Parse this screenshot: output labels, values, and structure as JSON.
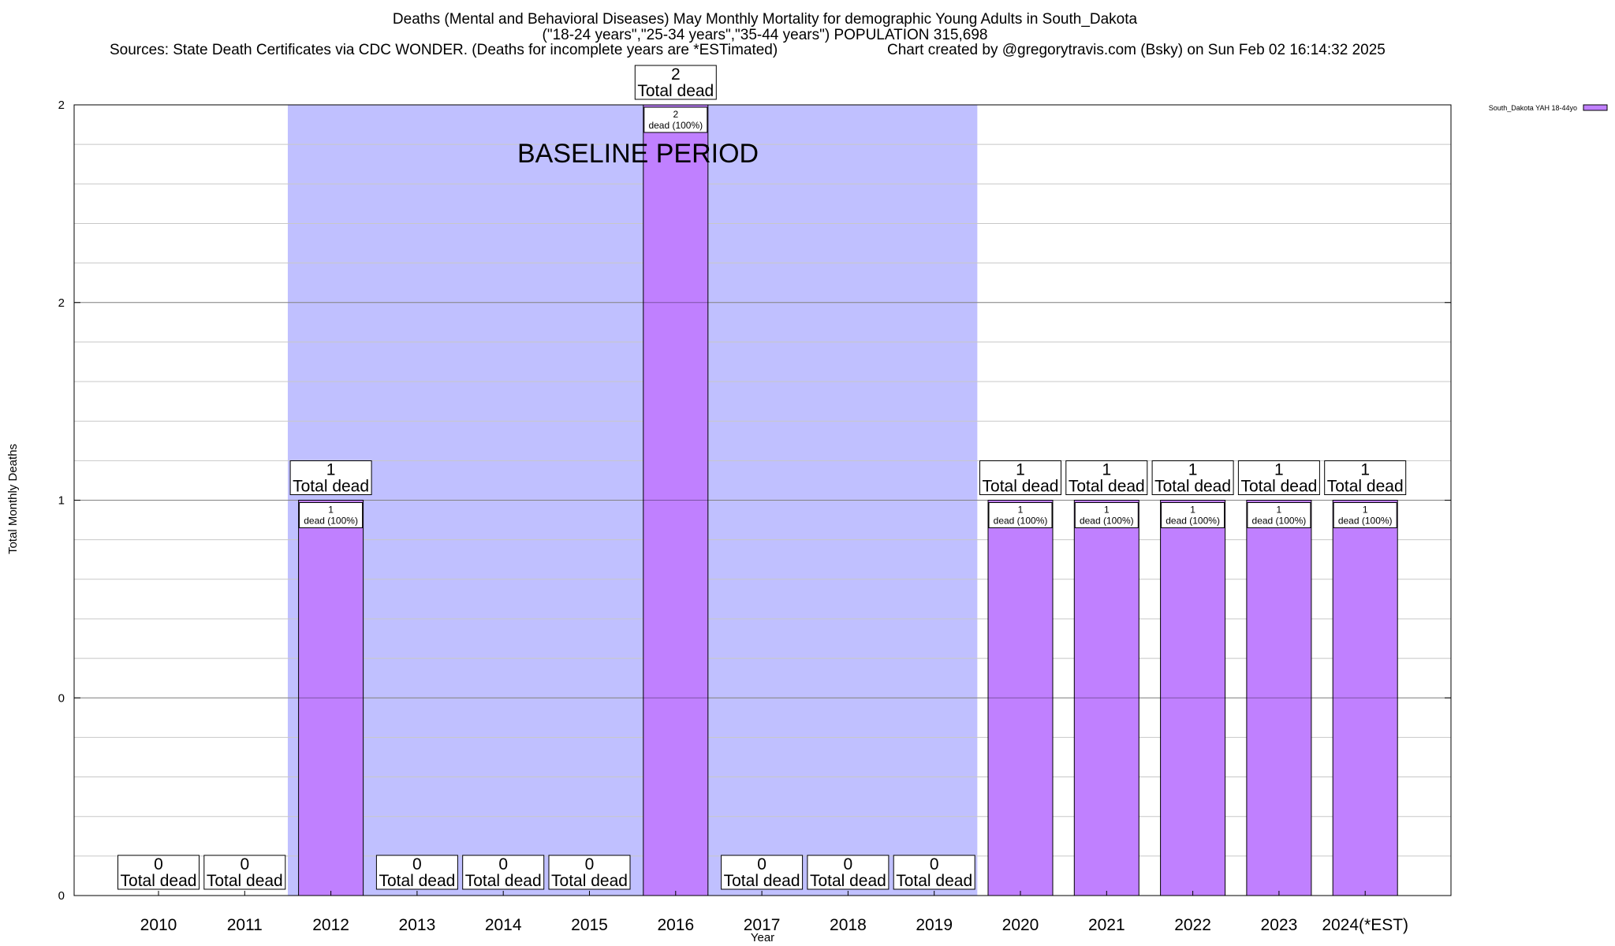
{
  "header": {
    "title": "Deaths (Mental and Behavioral Diseases) May Monthly Mortality for demographic Young Adults in South_Dakota",
    "subtitle": "(\"18-24 years\",\"25-34 years\",\"35-44 years\") POPULATION 315,698",
    "sources": "Sources: State Death Certificates via CDC WONDER. (Deaths for incomplete years are *ESTimated)",
    "credit": "Chart created by @gregorytravis.com (Bsky) on Sun Feb 02 16:14:32 2025"
  },
  "chart_data": {
    "type": "bar",
    "title": "Deaths (Mental and Behavioral Diseases) May Monthly Mortality for demographic Young Adults in South_Dakota",
    "xlabel": "Year",
    "ylabel": "Total Monthly Deaths",
    "categories": [
      "2010",
      "2011",
      "2012",
      "2013",
      "2014",
      "2015",
      "2016",
      "2017",
      "2018",
      "2019",
      "2020",
      "2021",
      "2022",
      "2023",
      "2024(*EST)"
    ],
    "series": [
      {
        "name": "South_Dakota YAH 18-44yo",
        "values": [
          0,
          0,
          1,
          0,
          0,
          0,
          2,
          0,
          0,
          0,
          1,
          1,
          1,
          1,
          1
        ],
        "color": "#c080ff"
      }
    ],
    "total_labels": [
      "0\nTotal dead",
      "0\nTotal dead",
      "1\nTotal dead",
      "0\nTotal dead",
      "0\nTotal dead",
      "0\nTotal dead",
      "2\nTotal dead",
      "0\nTotal dead",
      "0\nTotal dead",
      "0\nTotal dead",
      "1\nTotal dead",
      "1\nTotal dead",
      "1\nTotal dead",
      "1\nTotal dead",
      "1\nTotal dead"
    ],
    "bar_labels": [
      "",
      "",
      "1\ndead (100%)",
      "",
      "",
      "",
      "2\ndead (100%)",
      "",
      "",
      "",
      "1\ndead (100%)",
      "1\ndead (100%)",
      "1\ndead (100%)",
      "1\ndead (100%)",
      "1\ndead (100%)"
    ],
    "ytick_labels": [
      "0",
      "0",
      "1",
      "2",
      "2"
    ],
    "ylim": [
      0,
      2
    ],
    "grid": true,
    "legend_position": "top-right",
    "annotation": {
      "text": "BASELINE PERIOD",
      "from_category": "2012",
      "to_category": "2019",
      "color": "#c0c0ff"
    }
  }
}
